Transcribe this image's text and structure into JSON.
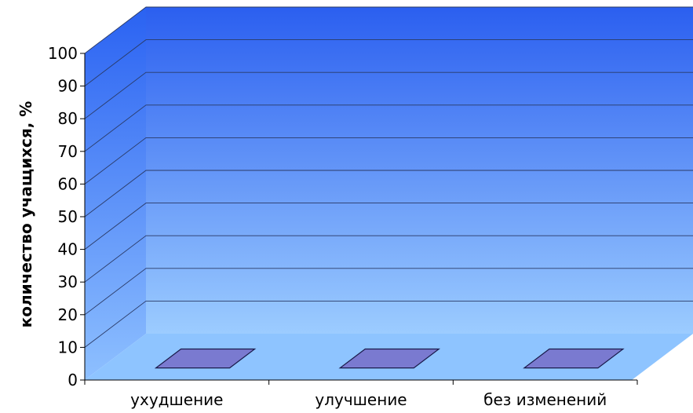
{
  "chart_data": {
    "type": "bar",
    "categories": [
      "ухудшение",
      "улучшение",
      "без изменений"
    ],
    "values": [
      0,
      0,
      0
    ],
    "ylabel": "количество учащихся, %",
    "xlabel": "",
    "ylim": [
      0,
      100
    ],
    "yticks": [
      "0",
      "10",
      "20",
      "30",
      "40",
      "50",
      "60",
      "70",
      "80",
      "90",
      "100"
    ],
    "grid": true,
    "three_d": true,
    "colors": {
      "back_wall_top": "#2b5ff0",
      "back_wall_bottom": "#9cccff",
      "side_wall_top": "#2a62f2",
      "side_wall_bottom": "#8ec0ff",
      "floor": "#8ec4ff",
      "bar_fill": "#7a7ad0",
      "bar_stroke": "#1a1a4a",
      "grid": "#2a3a66"
    }
  }
}
